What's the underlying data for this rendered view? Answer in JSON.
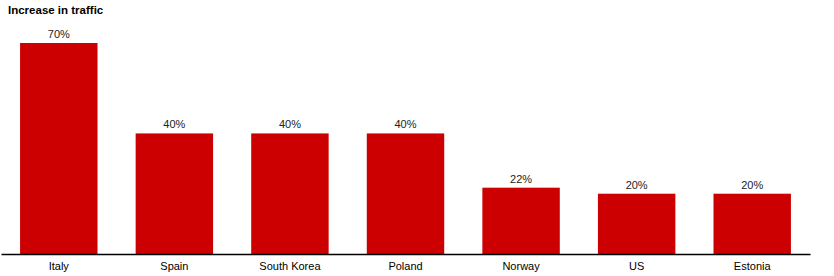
{
  "chart_data": {
    "type": "bar",
    "title": "Increase in traffic",
    "categories": [
      "Italy",
      "Spain",
      "South Korea",
      "Poland",
      "Norway",
      "US",
      "Estonia"
    ],
    "values": [
      70,
      40,
      40,
      40,
      22,
      20,
      20
    ],
    "value_labels": [
      "70%",
      "40%",
      "40%",
      "40%",
      "22%",
      "20%",
      "20%"
    ],
    "color": "#cc0000",
    "ylim": [
      0,
      70
    ],
    "data_labels": true,
    "tick_labels": "x",
    "grid": false
  }
}
